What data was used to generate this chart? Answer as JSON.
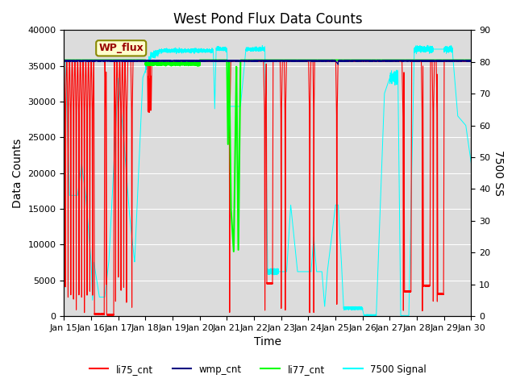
{
  "title": "West Pond Flux Data Counts",
  "xlabel": "Time",
  "ylabel_left": "Data Counts",
  "ylabel_right": "7500 SS",
  "ylim_left": [
    0,
    40000
  ],
  "ylim_right": [
    0,
    90
  ],
  "plot_bg_color": "#dcdcdc",
  "legend_labels": [
    "li75_cnt",
    "wmp_cnt",
    "li77_cnt",
    "7500 Signal"
  ],
  "legend_colors": [
    "red",
    "navy",
    "lime",
    "cyan"
  ],
  "box_label": "WP_flux",
  "box_facecolor": "#ffffcc",
  "box_edgecolor": "#888800",
  "box_textcolor": "#990000",
  "title_fontsize": 12,
  "axis_label_fontsize": 10,
  "tick_fontsize": 8,
  "n_points": 8000,
  "li77_base": 35800,
  "li75_base": 35600,
  "wmp_base": 35700
}
